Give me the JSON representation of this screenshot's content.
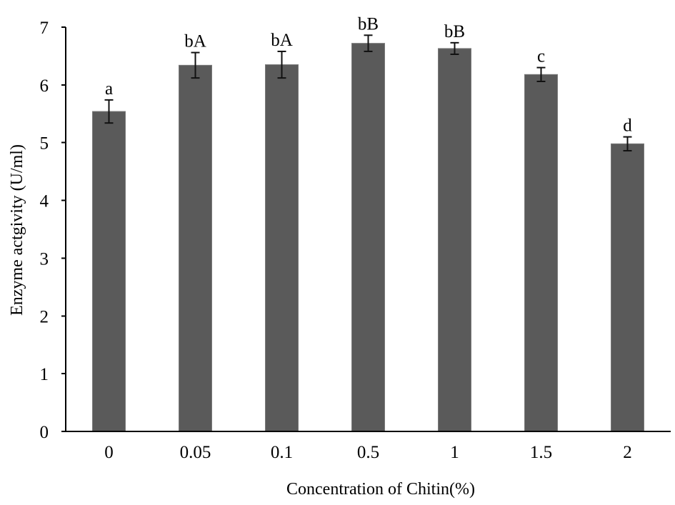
{
  "chart_data": {
    "type": "bar",
    "title": "",
    "xlabel": "Concentration of Chitin(%)",
    "ylabel": "Enzyme actgivity (U/ml)",
    "categories": [
      "0",
      "0.05",
      "0.1",
      "0.5",
      "1",
      "1.5",
      "2"
    ],
    "values": [
      5.54,
      6.34,
      6.35,
      6.72,
      6.63,
      6.18,
      4.98
    ],
    "errors": [
      0.2,
      0.22,
      0.23,
      0.14,
      0.1,
      0.12,
      0.12
    ],
    "annotations": [
      "a",
      "bA",
      "bA",
      "bB",
      "bB",
      "c",
      "d"
    ],
    "ylim": [
      0,
      7
    ],
    "yticks": [
      "0",
      "1",
      "2",
      "3",
      "4",
      "5",
      "6",
      "7"
    ],
    "grid": false,
    "bar_color": "#5a5a5a"
  }
}
